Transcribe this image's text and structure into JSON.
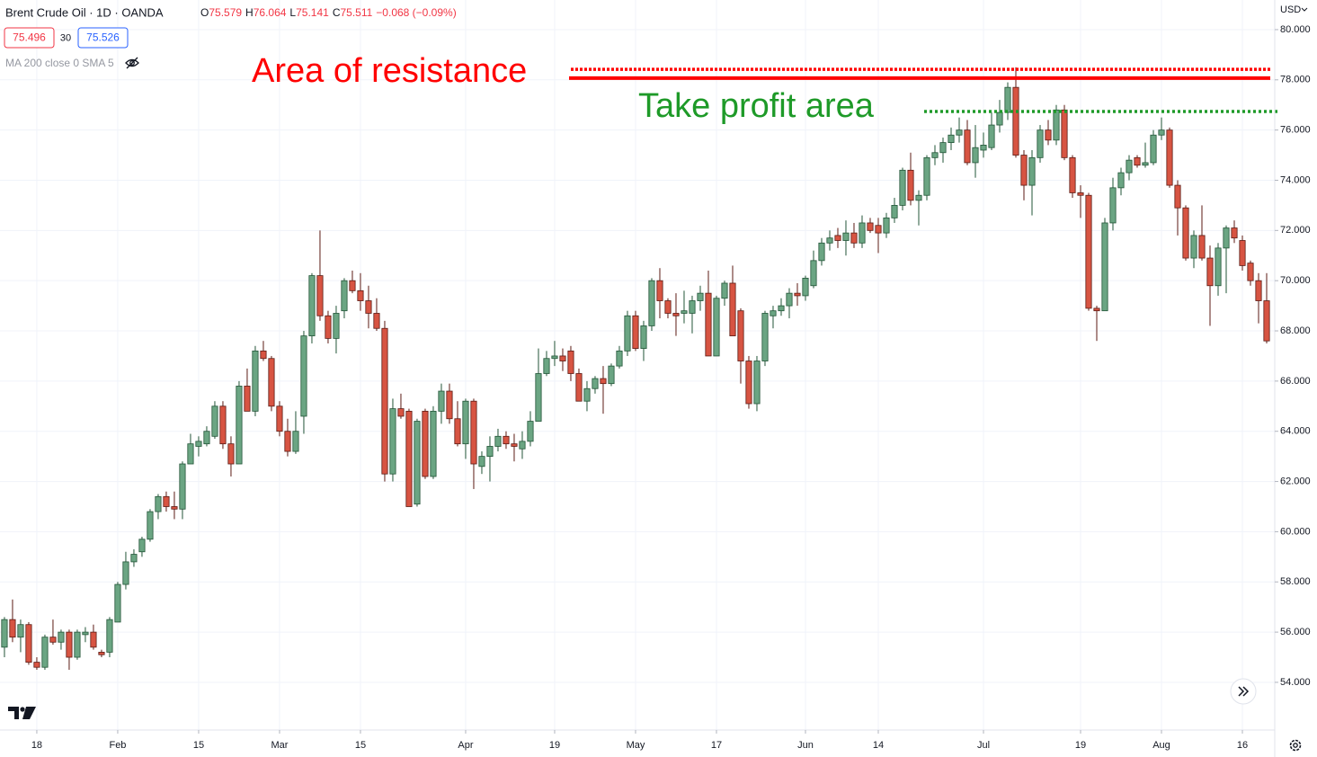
{
  "chart_data": {
    "type": "candlestick",
    "title": "Brent Crude Oil · 1D · OANDA",
    "status": {
      "open_label": "O",
      "open": 75.579,
      "high_label": "H",
      "high": 76.064,
      "low_label": "L",
      "low": 75.141,
      "close_label": "C",
      "close": 75.511,
      "change": "−0.068 (−0.09%)"
    },
    "bid": "75.496",
    "spread": "30",
    "ask": "75.526",
    "indicator": "MA 200 close 0 SMA 5",
    "currency": "USD",
    "up_color": "#6ba583",
    "up_border": "#225437",
    "down_color": "#d75442",
    "down_border": "#5b1a13",
    "grid": true,
    "ylim": [
      52.1,
      81.18
    ],
    "yticks": [
      {
        "value": 54,
        "label": "54.000"
      },
      {
        "value": 56,
        "label": "56.000"
      },
      {
        "value": 58,
        "label": "58.000"
      },
      {
        "value": 60,
        "label": "60.000"
      },
      {
        "value": 62,
        "label": "62.000"
      },
      {
        "value": 64,
        "label": "64.000"
      },
      {
        "value": 66,
        "label": "66.000"
      },
      {
        "value": 68,
        "label": "68.000"
      },
      {
        "value": 70,
        "label": "70.000"
      },
      {
        "value": 72,
        "label": "72.000"
      },
      {
        "value": 74,
        "label": "74.000"
      },
      {
        "value": 76,
        "label": "76.000"
      },
      {
        "value": 78,
        "label": "78.000"
      },
      {
        "value": 80,
        "label": "80.000"
      }
    ],
    "xlim": [
      -0.55,
      157.0
    ],
    "xticks": [
      {
        "value": 4,
        "label": "18"
      },
      {
        "value": 14,
        "label": "Feb"
      },
      {
        "value": 24,
        "label": "15"
      },
      {
        "value": 34,
        "label": "Mar"
      },
      {
        "value": 44,
        "label": "15"
      },
      {
        "value": 57,
        "label": "Apr"
      },
      {
        "value": 68,
        "label": "19"
      },
      {
        "value": 78,
        "label": "May"
      },
      {
        "value": 88,
        "label": "17"
      },
      {
        "value": 99,
        "label": "Jun"
      },
      {
        "value": 108,
        "label": "14"
      },
      {
        "value": 121,
        "label": "Jul"
      },
      {
        "value": 133,
        "label": "19"
      },
      {
        "value": 143,
        "label": "Aug"
      },
      {
        "value": 153,
        "label": "16"
      }
    ],
    "annotations": [
      {
        "text": "Area of resistance",
        "color": "#ff0000",
        "levels": [
          78.42,
          78.07
        ]
      },
      {
        "text": "Take profit area",
        "color": "#1e9a28",
        "levels": [
          76.74
        ]
      }
    ],
    "ohlc": [
      [
        55.4,
        56.6,
        55.0,
        56.5
      ],
      [
        56.5,
        57.3,
        55.6,
        55.8
      ],
      [
        55.8,
        56.5,
        55.2,
        56.3
      ],
      [
        56.3,
        56.4,
        54.7,
        54.8
      ],
      [
        54.8,
        55.0,
        54.5,
        54.6
      ],
      [
        54.6,
        55.9,
        54.5,
        55.8
      ],
      [
        55.8,
        56.5,
        55.5,
        55.6
      ],
      [
        55.6,
        56.1,
        55.3,
        56.0
      ],
      [
        56.0,
        56.1,
        54.5,
        55.0
      ],
      [
        55.0,
        56.1,
        54.9,
        56.0
      ],
      [
        55.9,
        56.2,
        55.6,
        56.0
      ],
      [
        56.0,
        56.3,
        55.3,
        55.4
      ],
      [
        55.2,
        55.3,
        55.0,
        55.1
      ],
      [
        55.2,
        56.6,
        55.0,
        56.5
      ],
      [
        56.4,
        58.0,
        56.4,
        57.9
      ],
      [
        57.9,
        59.2,
        57.7,
        58.8
      ],
      [
        58.8,
        59.3,
        58.6,
        59.1
      ],
      [
        59.2,
        59.8,
        59.0,
        59.7
      ],
      [
        59.7,
        60.9,
        59.6,
        60.8
      ],
      [
        60.8,
        61.5,
        60.5,
        61.4
      ],
      [
        61.4,
        61.6,
        60.8,
        61.0
      ],
      [
        61.0,
        61.6,
        60.5,
        60.9
      ],
      [
        60.9,
        62.8,
        60.5,
        62.7
      ],
      [
        62.7,
        63.9,
        62.7,
        63.5
      ],
      [
        63.4,
        63.8,
        63.0,
        63.6
      ],
      [
        63.5,
        64.2,
        63.4,
        64.0
      ],
      [
        63.8,
        65.2,
        63.7,
        65.0
      ],
      [
        65.0,
        65.2,
        63.3,
        63.5
      ],
      [
        63.5,
        63.8,
        62.2,
        62.7
      ],
      [
        62.7,
        66.0,
        62.7,
        65.8
      ],
      [
        65.8,
        66.5,
        64.8,
        64.8
      ],
      [
        64.8,
        67.4,
        64.6,
        67.2
      ],
      [
        67.2,
        67.6,
        66.8,
        66.9
      ],
      [
        66.9,
        67.0,
        64.8,
        65.0
      ],
      [
        65.0,
        65.2,
        63.8,
        64.0
      ],
      [
        64.0,
        64.5,
        63.0,
        63.2
      ],
      [
        63.2,
        64.8,
        63.1,
        64.0
      ],
      [
        64.6,
        68.0,
        63.9,
        67.8
      ],
      [
        67.8,
        70.3,
        67.5,
        70.2
      ],
      [
        70.2,
        72.0,
        68.4,
        68.6
      ],
      [
        68.6,
        68.8,
        67.5,
        67.7
      ],
      [
        67.7,
        69.0,
        67.1,
        68.7
      ],
      [
        68.8,
        70.1,
        68.5,
        70.0
      ],
      [
        70.0,
        70.4,
        69.5,
        69.6
      ],
      [
        69.6,
        70.3,
        68.8,
        69.2
      ],
      [
        69.2,
        69.8,
        68.1,
        68.7
      ],
      [
        68.7,
        69.3,
        68.0,
        68.1
      ],
      [
        68.1,
        68.4,
        62.0,
        62.3
      ],
      [
        62.3,
        65.3,
        62.0,
        64.9
      ],
      [
        64.9,
        65.5,
        64.5,
        64.6
      ],
      [
        64.8,
        64.9,
        61.0,
        61.0
      ],
      [
        61.1,
        64.5,
        61.0,
        64.4
      ],
      [
        64.8,
        64.9,
        62.1,
        62.2
      ],
      [
        62.2,
        65.0,
        62.1,
        64.8
      ],
      [
        64.8,
        65.9,
        64.3,
        65.6
      ],
      [
        65.6,
        65.9,
        64.3,
        64.5
      ],
      [
        64.5,
        65.2,
        63.4,
        63.5
      ],
      [
        63.5,
        65.3,
        62.9,
        65.2
      ],
      [
        65.2,
        65.3,
        61.7,
        62.7
      ],
      [
        62.6,
        63.2,
        62.3,
        63.0
      ],
      [
        63.0,
        63.8,
        62.0,
        63.4
      ],
      [
        63.4,
        64.1,
        63.2,
        63.8
      ],
      [
        63.8,
        64.0,
        63.3,
        63.5
      ],
      [
        63.5,
        63.9,
        62.8,
        63.4
      ],
      [
        63.3,
        64.0,
        62.9,
        63.6
      ],
      [
        63.6,
        64.8,
        63.4,
        64.4
      ],
      [
        64.4,
        67.3,
        64.4,
        66.3
      ],
      [
        66.3,
        67.2,
        66.2,
        66.9
      ],
      [
        66.9,
        67.6,
        66.6,
        67.0
      ],
      [
        67.0,
        67.3,
        66.4,
        66.8
      ],
      [
        67.2,
        67.4,
        66.0,
        66.3
      ],
      [
        66.3,
        66.5,
        65.2,
        65.2
      ],
      [
        65.2,
        66.0,
        64.8,
        65.7
      ],
      [
        65.7,
        66.2,
        65.5,
        66.1
      ],
      [
        66.1,
        66.6,
        64.7,
        65.9
      ],
      [
        65.9,
        66.7,
        65.8,
        66.6
      ],
      [
        66.6,
        67.4,
        66.5,
        67.2
      ],
      [
        67.2,
        68.8,
        67.0,
        68.6
      ],
      [
        68.6,
        68.8,
        67.2,
        67.3
      ],
      [
        67.3,
        68.4,
        66.8,
        68.2
      ],
      [
        68.2,
        70.1,
        68.0,
        70.0
      ],
      [
        70.0,
        70.5,
        68.5,
        69.2
      ],
      [
        69.2,
        69.3,
        68.5,
        68.7
      ],
      [
        68.7,
        69.5,
        67.8,
        68.6
      ],
      [
        68.7,
        69.6,
        68.3,
        68.8
      ],
      [
        68.7,
        69.4,
        67.9,
        69.2
      ],
      [
        69.2,
        69.8,
        68.8,
        69.5
      ],
      [
        69.5,
        70.4,
        67.0,
        67.0
      ],
      [
        67.0,
        69.4,
        67.0,
        69.3
      ],
      [
        69.3,
        70.0,
        69.0,
        69.9
      ],
      [
        69.9,
        70.6,
        67.8,
        67.8
      ],
      [
        68.8,
        68.9,
        65.9,
        66.8
      ],
      [
        66.8,
        67.0,
        64.9,
        65.1
      ],
      [
        65.1,
        67.0,
        64.8,
        66.8
      ],
      [
        66.8,
        68.8,
        66.6,
        68.7
      ],
      [
        68.6,
        69.0,
        68.1,
        68.8
      ],
      [
        68.8,
        69.3,
        68.6,
        69.0
      ],
      [
        69.0,
        69.7,
        68.5,
        69.5
      ],
      [
        69.5,
        69.9,
        69.0,
        69.4
      ],
      [
        69.4,
        70.2,
        69.2,
        70.1
      ],
      [
        69.8,
        71.2,
        69.7,
        70.8
      ],
      [
        70.8,
        71.7,
        70.6,
        71.5
      ],
      [
        71.5,
        72.0,
        71.2,
        71.7
      ],
      [
        71.8,
        72.1,
        71.3,
        71.6
      ],
      [
        71.6,
        72.4,
        71.0,
        71.9
      ],
      [
        71.9,
        72.3,
        71.3,
        71.5
      ],
      [
        71.5,
        72.6,
        71.3,
        72.3
      ],
      [
        72.3,
        72.5,
        71.9,
        72.0
      ],
      [
        72.2,
        72.5,
        71.1,
        71.9
      ],
      [
        71.9,
        72.7,
        71.7,
        72.5
      ],
      [
        72.5,
        73.3,
        72.3,
        73.0
      ],
      [
        73.0,
        74.5,
        72.8,
        74.4
      ],
      [
        74.4,
        75.1,
        73.0,
        73.2
      ],
      [
        73.2,
        73.6,
        72.2,
        73.4
      ],
      [
        73.4,
        75.0,
        73.2,
        74.9
      ],
      [
        74.9,
        75.4,
        74.6,
        75.1
      ],
      [
        75.1,
        75.7,
        74.7,
        75.5
      ],
      [
        75.5,
        76.1,
        75.2,
        75.8
      ],
      [
        75.8,
        76.5,
        75.5,
        76.0
      ],
      [
        76.0,
        76.4,
        74.6,
        74.7
      ],
      [
        74.7,
        76.2,
        74.1,
        75.3
      ],
      [
        75.2,
        75.9,
        74.9,
        75.4
      ],
      [
        75.3,
        76.7,
        75.2,
        76.2
      ],
      [
        76.2,
        77.2,
        75.9,
        76.7
      ],
      [
        76.7,
        77.9,
        76.4,
        77.7
      ],
      [
        77.7,
        78.5,
        74.9,
        75.0
      ],
      [
        75.0,
        75.2,
        73.2,
        73.8
      ],
      [
        73.8,
        75.2,
        72.6,
        74.9
      ],
      [
        74.9,
        76.2,
        74.7,
        76.0
      ],
      [
        76.0,
        76.4,
        75.4,
        75.6
      ],
      [
        75.6,
        77.0,
        75.4,
        76.8
      ],
      [
        76.8,
        77.0,
        74.8,
        74.9
      ],
      [
        74.9,
        75.0,
        73.3,
        73.5
      ],
      [
        73.5,
        73.8,
        72.5,
        73.4
      ],
      [
        73.4,
        73.5,
        68.8,
        68.9
      ],
      [
        68.9,
        69.0,
        67.6,
        68.8
      ],
      [
        68.8,
        72.5,
        68.8,
        72.3
      ],
      [
        72.3,
        74.1,
        72.0,
        73.7
      ],
      [
        73.7,
        74.5,
        73.4,
        74.3
      ],
      [
        74.3,
        75.0,
        74.0,
        74.8
      ],
      [
        74.9,
        75.0,
        74.5,
        74.6
      ],
      [
        74.6,
        75.5,
        74.5,
        74.7
      ],
      [
        74.7,
        76.0,
        74.6,
        75.8
      ],
      [
        75.8,
        76.5,
        75.6,
        76.0
      ],
      [
        76.0,
        76.1,
        73.7,
        73.8
      ],
      [
        73.8,
        74.0,
        71.8,
        72.9
      ],
      [
        72.9,
        73.0,
        70.8,
        70.9
      ],
      [
        70.9,
        72.0,
        70.5,
        71.8
      ],
      [
        71.8,
        73.0,
        70.8,
        70.9
      ],
      [
        70.9,
        71.4,
        68.2,
        69.8
      ],
      [
        69.8,
        71.5,
        69.4,
        71.3
      ],
      [
        71.3,
        72.2,
        69.5,
        72.1
      ],
      [
        72.1,
        72.4,
        71.5,
        71.7
      ],
      [
        71.6,
        71.8,
        70.4,
        70.6
      ],
      [
        70.7,
        70.8,
        69.8,
        70.0
      ],
      [
        70.0,
        70.3,
        68.3,
        69.2
      ],
      [
        69.2,
        70.3,
        67.5,
        67.6
      ]
    ]
  }
}
